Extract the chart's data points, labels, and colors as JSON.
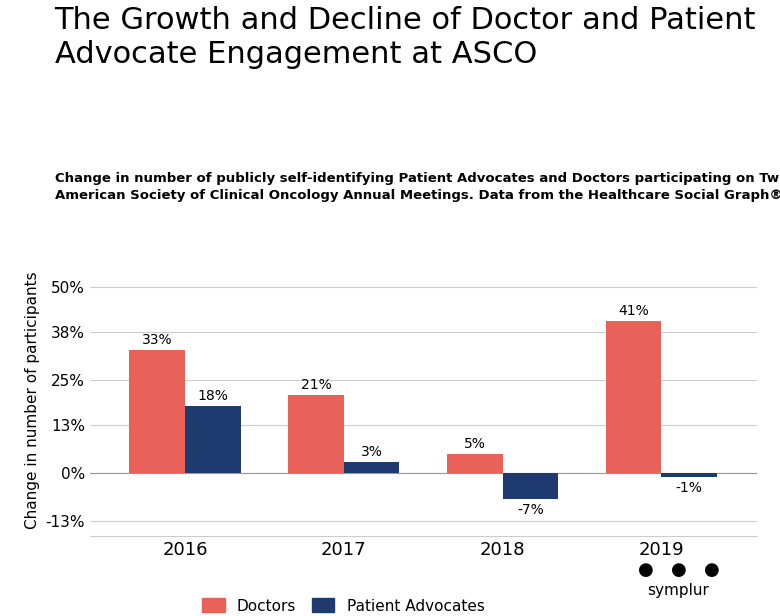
{
  "title": "The Growth and Decline of Doctor and Patient\nAdvocate Engagement at ASCO",
  "subtitle": "Change in number of publicly self-identifying Patient Advocates and Doctors participating on Twitter during\nAmerican Society of Clinical Oncology Annual Meetings. Data from the Healthcare Social Graph®.",
  "years": [
    "2016",
    "2017",
    "2018",
    "2019"
  ],
  "doctors": [
    33,
    21,
    5,
    41
  ],
  "advocates": [
    18,
    3,
    -7,
    -1
  ],
  "doctor_color": "#E8625A",
  "advocate_color": "#1F3A6E",
  "bar_width": 0.35,
  "ylim": [
    -17,
    56
  ],
  "yticks": [
    -13,
    0,
    13,
    25,
    38,
    50
  ],
  "ytick_labels": [
    "-13%",
    "0%",
    "13%",
    "25%",
    "38%",
    "50%"
  ],
  "ylabel": "Change in number of participants",
  "background_color": "#FFFFFF",
  "title_fontsize": 22,
  "subtitle_fontsize": 9.5,
  "axis_fontsize": 11,
  "label_fontsize": 10,
  "xtick_fontsize": 13,
  "legend_label_doctors": "Doctors",
  "legend_label_advocates": "Patient Advocates",
  "symplur_text": "symplur"
}
